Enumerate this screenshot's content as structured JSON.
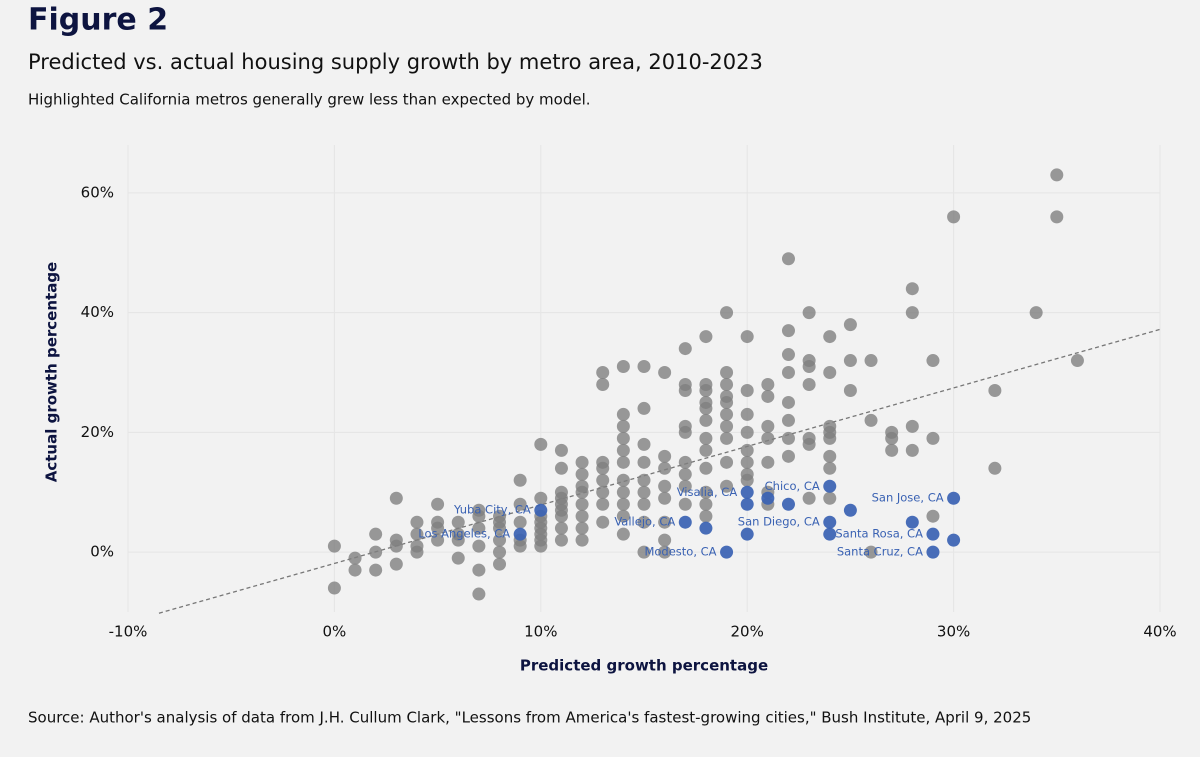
{
  "chart_data": {
    "type": "scatter",
    "figure_label": "Figure 2",
    "title": "Predicted vs. actual housing supply growth by metro area, 2010-2023",
    "subtitle": "Highlighted California metros generally grew less than expected by model.",
    "x_label": "Predicted growth percentage",
    "y_label": "Actual growth percentage",
    "source": "Source: Author's analysis of data from J.H. Cullum Clark, \"Lessons from America's fastest-growing cities,\" Bush Institute, April 9, 2025",
    "xlim": [
      -10,
      40
    ],
    "ylim": [
      -10,
      68
    ],
    "xticks": [
      {
        "value": -10,
        "label": "-10%"
      },
      {
        "value": 0,
        "label": "0%"
      },
      {
        "value": 10,
        "label": "10%"
      },
      {
        "value": 20,
        "label": "20%"
      },
      {
        "value": 30,
        "label": "30%"
      },
      {
        "value": 40,
        "label": "40%"
      }
    ],
    "yticks": [
      {
        "value": 0,
        "label": "0%"
      },
      {
        "value": 20,
        "label": "20%"
      },
      {
        "value": 40,
        "label": "40%"
      },
      {
        "value": 60,
        "label": "60%"
      }
    ],
    "grid": true,
    "trend_line": {
      "color": "#777777",
      "x": [
        -8.5,
        40
      ],
      "y": [
        -10.2,
        37.2
      ]
    },
    "series": [
      {
        "color": "#808080",
        "x": [
          0,
          0,
          1,
          1,
          2,
          2,
          2,
          3,
          3,
          3,
          3,
          4,
          4,
          4,
          4,
          5,
          5,
          5,
          5,
          6,
          6,
          6,
          6,
          7,
          7,
          7,
          7,
          7,
          7,
          8,
          8,
          8,
          8,
          8,
          8,
          9,
          9,
          9,
          9,
          9,
          10,
          10,
          10,
          10,
          10,
          10,
          10,
          10,
          11,
          11,
          11,
          11,
          11,
          11,
          11,
          11,
          11,
          12,
          12,
          12,
          12,
          12,
          12,
          12,
          12,
          13,
          13,
          13,
          13,
          13,
          13,
          13,
          13,
          14,
          14,
          14,
          14,
          14,
          14,
          14,
          14,
          14,
          14,
          14,
          15,
          15,
          15,
          15,
          15,
          15,
          15,
          15,
          15,
          16,
          16,
          16,
          16,
          16,
          16,
          16,
          16,
          17,
          17,
          17,
          17,
          17,
          17,
          17,
          17,
          17,
          18,
          18,
          18,
          18,
          18,
          18,
          18,
          18,
          18,
          18,
          18,
          18,
          19,
          19,
          19,
          19,
          19,
          19,
          19,
          19,
          19,
          19,
          20,
          20,
          20,
          20,
          20,
          20,
          20,
          20,
          21,
          21,
          21,
          21,
          21,
          21,
          21,
          22,
          22,
          22,
          22,
          22,
          22,
          22,
          22,
          23,
          23,
          23,
          23,
          23,
          23,
          23,
          24,
          24,
          24,
          24,
          24,
          24,
          24,
          24,
          25,
          25,
          25,
          26,
          26,
          26,
          27,
          27,
          27,
          28,
          28,
          28,
          28,
          29,
          29,
          29,
          30,
          32,
          32,
          34,
          35,
          35,
          36
        ],
        "values": [
          -6,
          1,
          -3,
          -1,
          -3,
          0,
          3,
          -2,
          1,
          2,
          9,
          0,
          1,
          3,
          5,
          2,
          4,
          5,
          8,
          -1,
          2,
          3,
          5,
          -7,
          -3,
          1,
          4,
          6,
          7,
          -2,
          0,
          2,
          4,
          5,
          6,
          1,
          2,
          5,
          8,
          12,
          1,
          2,
          3,
          4,
          5,
          6,
          9,
          18,
          2,
          4,
          6,
          7,
          8,
          9,
          10,
          14,
          17,
          2,
          4,
          6,
          8,
          10,
          11,
          13,
          15,
          5,
          8,
          10,
          12,
          14,
          15,
          28,
          30,
          3,
          6,
          8,
          10,
          12,
          15,
          17,
          19,
          21,
          23,
          31,
          0,
          5,
          8,
          10,
          12,
          15,
          18,
          24,
          31,
          0,
          2,
          5,
          9,
          11,
          14,
          16,
          30,
          8,
          11,
          13,
          15,
          20,
          21,
          27,
          28,
          34,
          6,
          8,
          10,
          14,
          17,
          19,
          22,
          24,
          25,
          27,
          28,
          36,
          11,
          15,
          19,
          21,
          23,
          25,
          26,
          28,
          30,
          40,
          12,
          13,
          15,
          17,
          20,
          23,
          27,
          36,
          8,
          10,
          15,
          19,
          21,
          26,
          28,
          16,
          19,
          22,
          25,
          30,
          33,
          37,
          49,
          9,
          18,
          19,
          28,
          31,
          32,
          40,
          9,
          14,
          16,
          19,
          20,
          21,
          30,
          36,
          27,
          32,
          38,
          0,
          22,
          32,
          17,
          19,
          20,
          17,
          21,
          40,
          44,
          6,
          19,
          32,
          56,
          14,
          27,
          40,
          56,
          63,
          32
        ]
      },
      {
        "color": "#3a62b3",
        "x": [
          10,
          9,
          17,
          20,
          19,
          24,
          24,
          30,
          29,
          29,
          18,
          20,
          20,
          21,
          22,
          25,
          28,
          30,
          24
        ],
        "values": [
          7,
          3,
          5,
          10,
          0,
          11,
          5,
          9,
          3,
          0,
          4,
          3,
          8,
          9,
          8,
          7,
          5,
          2,
          3
        ],
        "labels": [
          "Yuba City, CA",
          "Los Angeles, CA",
          "Vallejo, CA",
          "Visalia, CA",
          "Modesto, CA",
          "Chico, CA",
          "San Diego, CA",
          "San Jose, CA",
          "Santa Rosa, CA",
          "Santa Cruz, CA",
          null,
          null,
          null,
          null,
          null,
          null,
          null,
          null,
          null
        ]
      }
    ]
  }
}
